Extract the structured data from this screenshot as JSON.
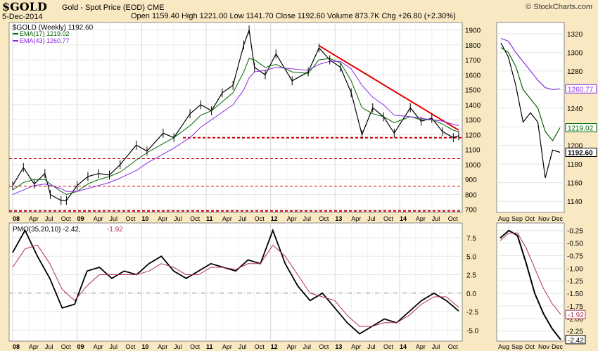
{
  "header": {
    "symbol": "$GOLD",
    "subtitle": "Gold - Spot Price (EOD)  CME",
    "brand": "© StockCharts.com",
    "date": "5-Dec-2014",
    "ohlc": "Open 1159.40  High 1221.00  Low 1141.70  Close 1192.60  Volume 873.7K  Chg +26.80 (+2.30%)",
    "ohlc_parts": [
      {
        "label": "Open",
        "value": "1159.40"
      },
      {
        "label": "High",
        "value": "1221.00"
      },
      {
        "label": "Low",
        "value": "1141.70"
      },
      {
        "label": "Close",
        "value": "1192.60"
      },
      {
        "label": "Volume",
        "value": "873.7K"
      },
      {
        "label": "Chg",
        "value": "+26.80 (+2.30%)"
      }
    ]
  },
  "legend": {
    "main": "$GOLD (Weekly) 1192.60",
    "ema17": "EMA(17) 1219.02",
    "ema43": "EMA(43) 1260.77",
    "pmo_prefix": "PMO(35,20,10) -2.42,",
    "pmo_signal": "-1.92"
  },
  "colors": {
    "price": "#000000",
    "ema17": "#006400",
    "ema43": "#8a2be2",
    "trendline": "#e00000",
    "support": "#cc0000",
    "pmo": "#000000",
    "pmo_signal": "#b03050",
    "background": "#f9e9c2",
    "panel": "#ffffff"
  },
  "chart_data": [
    {
      "type": "line",
      "name": "price-weekly",
      "title": "$GOLD (Weekly) 1192.60",
      "x_tick_labels": [
        "08",
        "Apr",
        "Jul",
        "Oct",
        "09",
        "Apr",
        "Jul",
        "Oct",
        "10",
        "Apr",
        "Jul",
        "Oct",
        "11",
        "Apr",
        "Jul",
        "Oct",
        "12",
        "Apr",
        "Jul",
        "Oct",
        "13",
        "Apr",
        "Jul",
        "Oct",
        "14",
        "Apr",
        "Jul",
        "Oct"
      ],
      "y_ticks": [
        700,
        800,
        900,
        1000,
        1100,
        1200,
        1300,
        1400,
        1500,
        1600,
        1700,
        1800,
        1900
      ],
      "ylim": [
        680,
        1950
      ],
      "x_range": [
        "2008-01",
        "2014-12"
      ],
      "dates": [
        "2008-01",
        "2008-03",
        "2008-05",
        "2008-07",
        "2008-08",
        "2008-10",
        "2008-11",
        "2009-01",
        "2009-03",
        "2009-05",
        "2009-07",
        "2009-09",
        "2009-12",
        "2010-02",
        "2010-05",
        "2010-07",
        "2010-10",
        "2010-12",
        "2011-02",
        "2011-04",
        "2011-06",
        "2011-08",
        "2011-09",
        "2011-10",
        "2011-12",
        "2012-02",
        "2012-05",
        "2012-08",
        "2012-10",
        "2012-12",
        "2013-02",
        "2013-04",
        "2013-06",
        "2013-08",
        "2013-10",
        "2013-12",
        "2014-03",
        "2014-05",
        "2014-07",
        "2014-09",
        "2014-11",
        "2014-12"
      ],
      "series": [
        {
          "name": "$GOLD (Weekly)",
          "values": [
            860,
            980,
            870,
            940,
            800,
            760,
            760,
            860,
            920,
            940,
            930,
            1000,
            1130,
            1090,
            1210,
            1180,
            1340,
            1400,
            1360,
            1480,
            1530,
            1800,
            1900,
            1650,
            1600,
            1740,
            1560,
            1620,
            1780,
            1700,
            1650,
            1480,
            1200,
            1380,
            1320,
            1210,
            1380,
            1290,
            1310,
            1220,
            1180,
            1192.6
          ]
        },
        {
          "name": "EMA(17)",
          "values": [
            830,
            880,
            900,
            900,
            870,
            820,
            800,
            820,
            870,
            900,
            920,
            950,
            1030,
            1080,
            1140,
            1180,
            1260,
            1330,
            1360,
            1420,
            1480,
            1620,
            1710,
            1700,
            1650,
            1670,
            1620,
            1610,
            1700,
            1710,
            1680,
            1560,
            1380,
            1340,
            1320,
            1280,
            1320,
            1300,
            1300,
            1270,
            1230,
            1219.02
          ]
        },
        {
          "name": "EMA(43)",
          "values": [
            800,
            830,
            860,
            870,
            860,
            840,
            820,
            820,
            840,
            860,
            880,
            910,
            960,
            1010,
            1070,
            1110,
            1180,
            1250,
            1300,
            1350,
            1400,
            1500,
            1580,
            1620,
            1630,
            1650,
            1640,
            1630,
            1670,
            1690,
            1690,
            1640,
            1530,
            1450,
            1400,
            1330,
            1320,
            1310,
            1300,
            1290,
            1270,
            1260.77
          ]
        }
      ],
      "support_lines": [
        1180,
        1040,
        855,
        690
      ],
      "trendline": {
        "from": [
          "2012-10",
          1795
        ],
        "to": [
          "2014-12",
          1230
        ]
      }
    },
    {
      "type": "line",
      "name": "price-daily-zoom",
      "x_tick_labels": [
        "Aug",
        "Sep",
        "Oct",
        "Nov",
        "Dec"
      ],
      "y_ticks": [
        1140,
        1160,
        1180,
        1200,
        1220,
        1240,
        1260,
        1280,
        1300,
        1320
      ],
      "ylim": [
        1128,
        1332
      ],
      "dates": [
        "Aug",
        "Aug",
        "Sep",
        "Sep",
        "Oct",
        "Oct",
        "Nov",
        "Nov",
        "Dec"
      ],
      "series": [
        {
          "name": "$GOLD",
          "values": [
            1310,
            1295,
            1265,
            1225,
            1235,
            1225,
            1165,
            1195,
            1192.6
          ]
        },
        {
          "name": "EMA(17)",
          "values": [
            1305,
            1300,
            1285,
            1260,
            1250,
            1240,
            1215,
            1205,
            1219.02
          ]
        },
        {
          "name": "EMA(43)",
          "values": [
            1315,
            1312,
            1300,
            1290,
            1280,
            1270,
            1262,
            1260,
            1260.77
          ]
        }
      ],
      "value_labels": [
        "1260.77",
        "1219.02",
        "1192.60"
      ]
    },
    {
      "type": "line",
      "name": "pmo-weekly",
      "title": "PMO(35,20,10) -2.42, -1.92",
      "y_ticks": [
        -5.0,
        -2.5,
        0.0,
        2.5,
        5.0,
        7.5
      ],
      "y_tick_labels": [
        "-5.0",
        "-2.5",
        "0.0",
        "2.5",
        "5.0",
        "7.5"
      ],
      "ylim": [
        -6.5,
        9.5
      ],
      "x_tick_labels": [
        "08",
        "Apr",
        "Jul",
        "Oct",
        "09",
        "Apr",
        "Jul",
        "Oct",
        "10",
        "Apr",
        "Jul",
        "Oct",
        "11",
        "Apr",
        "Jul",
        "Oct",
        "12",
        "Apr",
        "Jul",
        "Oct",
        "13",
        "Apr",
        "Jul",
        "Oct",
        "14",
        "Apr",
        "Jul",
        "Oct"
      ],
      "series": [
        {
          "name": "PMO",
          "values": [
            5.5,
            8.5,
            5.0,
            2.0,
            -2.0,
            -1.5,
            3.0,
            3.5,
            2.0,
            3.0,
            2.5,
            4.0,
            5.0,
            3.0,
            2.0,
            3.0,
            4.0,
            3.5,
            3.0,
            4.5,
            4.0,
            8.5,
            4.0,
            1.0,
            -1.0,
            0.0,
            -2.0,
            -4.0,
            -5.5,
            -4.5,
            -3.5,
            -4.0,
            -2.5,
            -1.0,
            0.0,
            -1.0,
            -2.42
          ]
        },
        {
          "name": "Signal",
          "values": [
            3.5,
            6.0,
            6.5,
            4.0,
            0.5,
            -1.0,
            1.0,
            2.5,
            2.5,
            2.5,
            2.5,
            3.0,
            4.0,
            3.5,
            2.5,
            2.5,
            3.5,
            3.5,
            3.2,
            4.0,
            4.0,
            6.5,
            5.0,
            2.5,
            0.0,
            -0.5,
            -1.0,
            -3.0,
            -4.5,
            -4.5,
            -4.0,
            -4.0,
            -3.0,
            -1.5,
            -0.5,
            -0.5,
            -1.92
          ]
        }
      ]
    },
    {
      "type": "line",
      "name": "pmo-daily-zoom",
      "x_tick_labels": [
        "Aug",
        "Sep",
        "Oct",
        "Nov",
        "Dec"
      ],
      "y_ticks": [
        -2.25,
        -2.0,
        -1.75,
        -1.5,
        -1.25,
        -1.0,
        -0.75,
        -0.5,
        -0.25
      ],
      "y_tick_labels": [
        "-2.25",
        "-2.00",
        "-1.75",
        "-1.50",
        "-1.25",
        "-1.00",
        "-0.75",
        "-0.50",
        "-0.25"
      ],
      "ylim": [
        -2.45,
        -0.1
      ],
      "series": [
        {
          "name": "PMO",
          "values": [
            -0.4,
            -0.25,
            -0.35,
            -0.9,
            -1.5,
            -1.9,
            -2.2,
            -2.42
          ]
        },
        {
          "name": "Signal",
          "values": [
            -0.45,
            -0.3,
            -0.3,
            -0.6,
            -1.0,
            -1.4,
            -1.7,
            -1.92
          ]
        }
      ],
      "value_labels": [
        "-1.92",
        "-2.42"
      ]
    }
  ]
}
